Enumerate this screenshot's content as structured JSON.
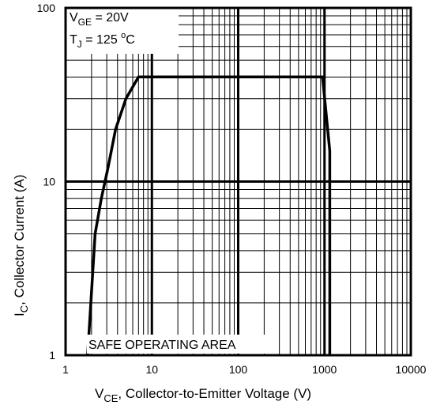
{
  "chart_data": {
    "type": "line",
    "x_scale": "log",
    "y_scale": "log",
    "xlim": [
      1,
      10000
    ],
    "ylim": [
      1,
      100
    ],
    "grid": true,
    "x_ticks": [
      1,
      10,
      100,
      1000,
      10000
    ],
    "x_tick_labels": [
      "1",
      "10",
      "100",
      "1000",
      "10000"
    ],
    "y_ticks": [
      1,
      10,
      100
    ],
    "y_tick_labels": [
      "1",
      "10",
      "100"
    ],
    "xlabel": {
      "main": "V",
      "sub": "CE",
      "rest": ", Collector-to-Emitter Voltage (V)"
    },
    "ylabel": {
      "main": "I",
      "sub": "C",
      "rest": ",  Collector Current (A)"
    },
    "conditions": {
      "line1": {
        "main": "V",
        "sub": "GE",
        "rest": " = 20V"
      },
      "line2": {
        "main": "T",
        "sub": "J",
        "rest": "  = 125 ",
        "sup": "o",
        "unit": "C"
      }
    },
    "annotation": "SAFE OPERATING AREA",
    "series": [
      {
        "x": [
          1.8,
          2.2,
          2.6,
          3.1,
          3.8,
          5.0,
          7.0,
          8.0,
          900,
          950,
          1150,
          1150
        ],
        "y": [
          1,
          5,
          8,
          12,
          20,
          30,
          40,
          40,
          40,
          40,
          15,
          1
        ]
      }
    ]
  }
}
